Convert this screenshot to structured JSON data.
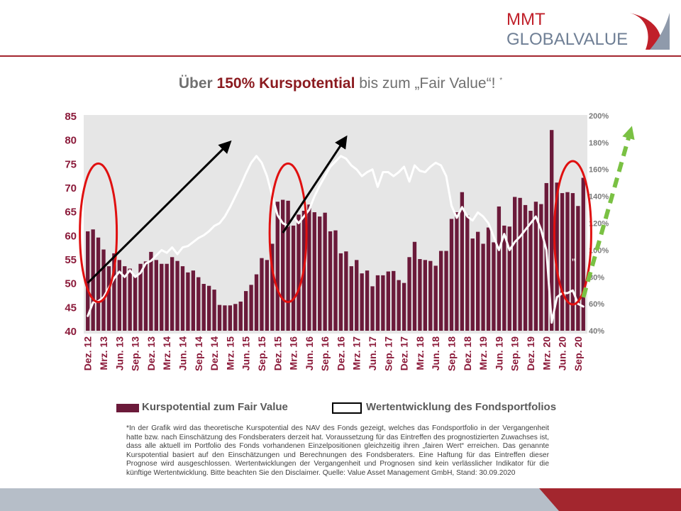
{
  "logo": {
    "line1": "MMT",
    "line2": "GLOBALVALUE"
  },
  "title": {
    "part1": "Über ",
    "part2": "150% Kurspotential",
    "part3": " bis zum „Fair Value“! ",
    "star": "*"
  },
  "legend": {
    "bars": "Kurspotential zum Fair Value",
    "line": "Wertentwicklung des Fondsportfolios"
  },
  "footnote": "*In der Grafik wird das theoretische Kurspotential des NAV des Fonds gezeigt, welches das Fondsportfolio in der Vergangenheit hatte bzw. nach Einschätzung des Fondsberaters derzeit hat. Voraussetzung für das Eintreffen des prognostizierten Zuwachses ist, dass alle aktuell im Portfolio des Fonds vorhandenen Einzelpositionen gleichzeitig ihren „fairen Wert“ erreichen. Das genannte Kurspotential basiert auf den Einschätzungen und Berechnungen des Fondsberaters. Eine Haftung für das Eintreffen dieser Prognose wird ausgeschlossen. Wertentwicklungen der Vergangenheit und Prognosen sind kein verlässlicher Indikator für die künftige Wertentwicklung. Bitte beachten Sie den Disclaimer. Quelle: Value Asset Management GmbH, Stand: 30.09.2020",
  "colors": {
    "bar": "#6b1a3a",
    "line": "#ffffff",
    "highlight": "#e01010",
    "arrow": "#000000",
    "forecast": "#7ac143",
    "axis_label": "#8b1a3a"
  },
  "chart_data": {
    "type": "bar",
    "left_ylim": [
      40,
      85
    ],
    "left_ticks": [
      40,
      45,
      50,
      55,
      60,
      65,
      70,
      75,
      80,
      85
    ],
    "right_ylim": [
      0.4,
      2.0
    ],
    "right_ticks": [
      "40%",
      "60%",
      "80%",
      "100%",
      "120%",
      "140%",
      "160%",
      "180%",
      "200%"
    ],
    "x_tick_labels": [
      "Dez. 12",
      "Mrz. 13",
      "Jun. 13",
      "Sep. 13",
      "Dez. 13",
      "Mrz. 14",
      "Jun. 14",
      "Sep. 14",
      "Dez. 14",
      "Mrz. 15",
      "Jun. 15",
      "Sep. 15",
      "Dez. 15",
      "Mrz. 16",
      "Jun. 16",
      "Sep. 16",
      "Dez. 16",
      "Mrz. 17",
      "Jun. 17",
      "Sep. 17",
      "Dez. 17",
      "Mrz. 18",
      "Jun. 18",
      "Sep. 18",
      "Dez. 18",
      "Mrz. 19",
      "Jun. 19",
      "Sep. 19",
      "Dez. 19",
      "Mrz. 20",
      "Jun. 20",
      "Sep. 20"
    ],
    "series": [
      {
        "name": "Kurspotential zum Fair Value",
        "type": "bar",
        "axis": "left",
        "values": [
          60.8,
          61.2,
          59.5,
          57,
          53.5,
          56.2,
          54.8,
          53.5,
          53,
          51.5,
          54,
          54.5,
          56.5,
          54.8,
          54,
          54,
          55.4,
          54.6,
          53.5,
          52.2,
          52.6,
          51.2,
          49.8,
          49.4,
          48.6,
          45.4,
          45.3,
          45.3,
          45.6,
          46.1,
          48.3,
          49.6,
          51.8,
          55.2,
          54.8,
          58.2,
          67,
          67.4,
          67.2,
          62,
          64.3,
          65.1,
          66.4,
          64.8,
          63.9,
          64.7,
          60.8,
          61,
          56.2,
          56.6,
          53.5,
          54.8,
          52,
          52.6,
          49.3,
          51.6,
          51.6,
          52.4,
          52.5,
          50.6,
          50,
          55.4,
          58.6,
          55,
          54.8,
          54.6,
          53.6,
          56.7,
          56.7,
          63.4,
          64.8,
          69,
          64.1,
          59.3,
          60.7,
          58.2,
          61.6,
          58.5,
          66,
          62,
          61.8,
          68,
          67.8,
          66.3,
          65.1,
          67,
          66.5,
          70.9,
          82,
          71,
          68.8,
          69,
          68.8,
          66.1,
          72
        ]
      },
      {
        "name": "Wertentwicklung des Fondsportfolios",
        "type": "line",
        "axis": "right",
        "values": [
          0.51,
          0.61,
          0.62,
          0.65,
          0.72,
          0.79,
          0.84,
          0.8,
          0.85,
          0.8,
          0.83,
          0.9,
          0.92,
          0.96,
          1.0,
          0.98,
          1.02,
          0.97,
          1.02,
          1.03,
          1.06,
          1.09,
          1.11,
          1.14,
          1.18,
          1.2,
          1.25,
          1.32,
          1.4,
          1.48,
          1.57,
          1.65,
          1.7,
          1.65,
          1.55,
          1.4,
          1.26,
          1.2,
          1.18,
          1.25,
          1.2,
          1.25,
          1.3,
          1.4,
          1.48,
          1.55,
          1.62,
          1.66,
          1.7,
          1.68,
          1.63,
          1.6,
          1.55,
          1.58,
          1.6,
          1.47,
          1.58,
          1.58,
          1.55,
          1.58,
          1.62,
          1.51,
          1.63,
          1.59,
          1.58,
          1.62,
          1.65,
          1.63,
          1.55,
          1.33,
          1.24,
          1.32,
          1.25,
          1.22,
          1.28,
          1.25,
          1.2,
          1.1,
          1.0,
          1.12,
          1.0,
          1.06,
          1.1,
          1.15,
          1.2,
          1.25,
          1.15,
          1.0,
          0.46,
          0.65,
          0.68,
          0.68,
          0.7,
          0.6,
          0.58
        ]
      }
    ],
    "annotations": [
      {
        "type": "ellipse",
        "x_center": 2,
        "y_center": 60.5,
        "x_radius": 1.4,
        "y_radius": 14.5
      },
      {
        "type": "ellipse",
        "x_center": 38,
        "y_center": 60.5,
        "x_radius": 1.4,
        "y_radius": 14.5
      },
      {
        "type": "ellipse",
        "x_center": 92,
        "y_center": 60.5,
        "x_radius": 1.4,
        "y_radius": 15
      },
      {
        "type": "arrow",
        "from": [
          0,
          50
        ],
        "to": [
          27,
          79.5
        ],
        "style": "solid"
      },
      {
        "type": "arrow",
        "from": [
          37,
          60.5
        ],
        "to": [
          49,
          80.5
        ],
        "style": "solid"
      },
      {
        "type": "arrow",
        "from": [
          94,
          47
        ],
        "to": [
          103,
          82
        ],
        "style": "dashed"
      }
    ]
  }
}
